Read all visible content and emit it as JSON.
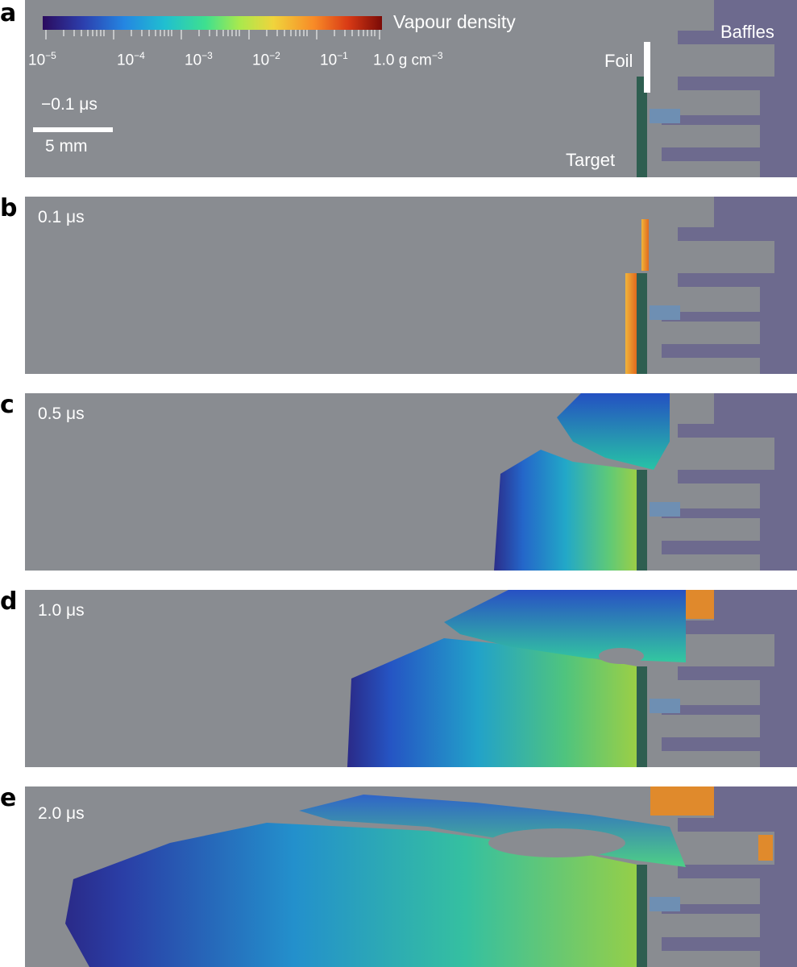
{
  "panels": [
    {
      "letter": "a",
      "time": "−0.1 μs"
    },
    {
      "letter": "b",
      "time": "0.1 μs"
    },
    {
      "letter": "c",
      "time": "0.5 μs"
    },
    {
      "letter": "d",
      "time": "1.0 μs"
    },
    {
      "letter": "e",
      "time": "2.0 μs"
    }
  ],
  "colorbar": {
    "title": "Vapour density",
    "ticks": [
      {
        "base": "10",
        "exp": "−5"
      },
      {
        "base": "10",
        "exp": "−4"
      },
      {
        "base": "10",
        "exp": "−3"
      },
      {
        "base": "10",
        "exp": "−2"
      },
      {
        "base": "10",
        "exp": "−1"
      },
      {
        "base": "1.0 g cm",
        "exp": "−3"
      }
    ]
  },
  "scalebar": {
    "label": "5 mm"
  },
  "annotations": {
    "foil": "Foil",
    "baffles": "Baffles",
    "target": "Target"
  },
  "colors": {
    "background": "#898c91",
    "baffle": "#6d6a8e",
    "target": "#2e5e50",
    "window": "#6e8fb3"
  }
}
